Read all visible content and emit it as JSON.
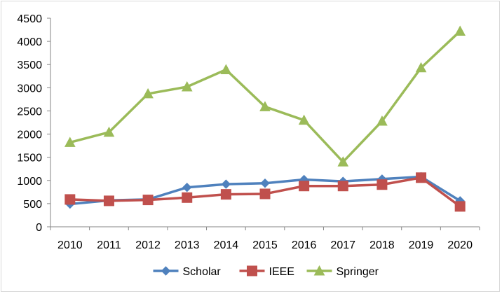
{
  "chart_data": {
    "type": "line",
    "title": "",
    "xlabel": "",
    "ylabel": "",
    "x": [
      "2010",
      "2011",
      "2012",
      "2013",
      "2014",
      "2015",
      "2016",
      "2017",
      "2018",
      "2019",
      "2020"
    ],
    "ylim": [
      0,
      4500
    ],
    "yticks": [
      "0",
      "500",
      "1000",
      "1500",
      "2000",
      "2500",
      "3000",
      "3500",
      "4000",
      "4500"
    ],
    "grid": false,
    "legend_position": "bottom",
    "series": [
      {
        "name": "Scholar",
        "color": "#4f81bd",
        "marker": "diamond",
        "values": [
          490,
          570,
          590,
          850,
          920,
          940,
          1020,
          980,
          1030,
          1080,
          560
        ]
      },
      {
        "name": "IEEE",
        "color": "#c0504d",
        "marker": "square",
        "values": [
          590,
          560,
          580,
          630,
          700,
          710,
          880,
          880,
          910,
          1060,
          440
        ]
      },
      {
        "name": "Springer",
        "color": "#9bbb59",
        "marker": "triangle",
        "values": [
          1820,
          2040,
          2870,
          3020,
          3390,
          2590,
          2300,
          1400,
          2280,
          3430,
          4220
        ]
      }
    ]
  }
}
